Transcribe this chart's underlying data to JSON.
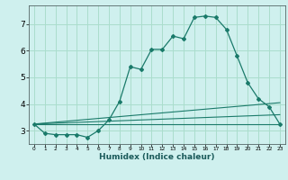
{
  "xlabel": "Humidex (Indice chaleur)",
  "ylabel": "",
  "background_color": "#cff0ee",
  "grid_color": "#aaddcc",
  "line_color": "#1a7a6a",
  "xlim": [
    -0.5,
    23.5
  ],
  "ylim": [
    2.5,
    7.7
  ],
  "yticks": [
    3,
    4,
    5,
    6,
    7
  ],
  "xticks": [
    0,
    1,
    2,
    3,
    4,
    5,
    6,
    7,
    8,
    9,
    10,
    11,
    12,
    13,
    14,
    15,
    16,
    17,
    18,
    19,
    20,
    21,
    22,
    23
  ],
  "curve1_x": [
    0,
    1,
    2,
    3,
    4,
    5,
    6,
    7,
    8,
    9,
    10,
    11,
    12,
    13,
    14,
    15,
    16,
    17,
    18,
    19,
    20,
    21,
    22,
    23
  ],
  "curve1_y": [
    3.25,
    2.9,
    2.85,
    2.85,
    2.85,
    2.75,
    3.0,
    3.4,
    4.1,
    5.4,
    5.3,
    6.05,
    6.05,
    6.55,
    6.45,
    7.25,
    7.3,
    7.25,
    6.8,
    5.8,
    4.8,
    4.2,
    3.9,
    3.25
  ],
  "curve2_x": [
    0,
    23
  ],
  "curve2_y": [
    3.25,
    3.25
  ],
  "curve3_x": [
    0,
    23
  ],
  "curve3_y": [
    3.25,
    3.6
  ],
  "curve4_x": [
    0,
    23
  ],
  "curve4_y": [
    3.25,
    4.05
  ]
}
